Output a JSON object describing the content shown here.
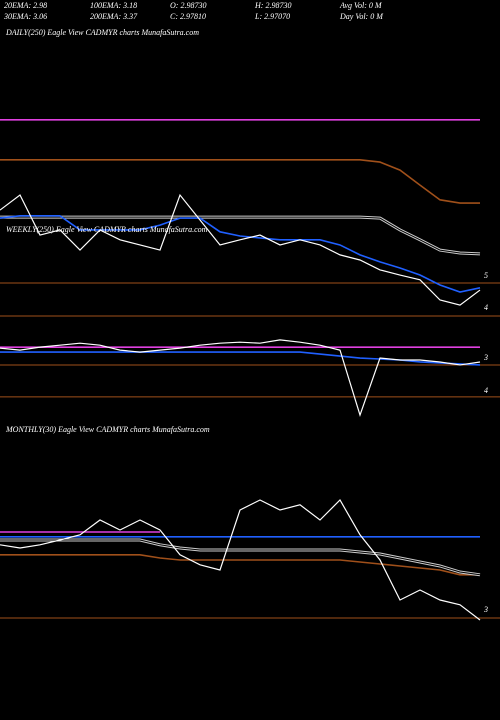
{
  "header": {
    "row1": [
      "20EMA: 2.98",
      "100EMA: 3.18",
      "O: 2.98730",
      "H: 2.98730",
      "Avg Vol: 0  M"
    ],
    "row2": [
      "30EMA: 3.06",
      "200EMA: 3.37",
      "C: 2.97810",
      "L: 2.97070",
      "Day Vol: 0  M"
    ]
  },
  "chart_data": [
    {
      "type": "line",
      "title": "DAILY(250) Eagle  View  CADMYR charts MunafaSutra.com",
      "ylim": [
        3.625,
        12.6875
      ],
      "yticks": [
        5,
        4
      ],
      "level_color": "#a0501a",
      "levels": [
        4.78,
        3.75
      ],
      "series": [
        {
          "color": "#e040e0",
          "style": "solid",
          "values": [
            9.88,
            9.88,
            9.88,
            9.88,
            9.88,
            9.88,
            9.88,
            9.88,
            9.88,
            9.88,
            9.88,
            9.88,
            9.88,
            9.88,
            9.88,
            9.88,
            9.88,
            9.88,
            9.88,
            9.88,
            9.88,
            9.88,
            9.88,
            9.88,
            9.88
          ]
        },
        {
          "color": "#a0501a",
          "style": "solid",
          "values": [
            8.63,
            8.63,
            8.63,
            8.63,
            8.63,
            8.63,
            8.63,
            8.63,
            8.63,
            8.63,
            8.63,
            8.63,
            8.63,
            8.63,
            8.63,
            8.63,
            8.63,
            8.63,
            8.63,
            8.56,
            8.31,
            7.84,
            7.38,
            7.28,
            7.28
          ]
        },
        {
          "color": "#cccccc",
          "style": "double",
          "values": [
            6.84,
            6.84,
            6.84,
            6.84,
            6.84,
            6.84,
            6.84,
            6.84,
            6.84,
            6.84,
            6.84,
            6.84,
            6.84,
            6.84,
            6.84,
            6.84,
            6.84,
            6.84,
            6.84,
            6.81,
            6.44,
            6.13,
            5.81,
            5.72,
            5.69
          ]
        },
        {
          "color": "#2060ff",
          "style": "solid",
          "values": [
            6.81,
            6.88,
            6.88,
            6.88,
            6.44,
            6.44,
            6.44,
            6.44,
            6.59,
            6.81,
            6.81,
            6.38,
            6.25,
            6.19,
            6.13,
            6.13,
            6.13,
            5.97,
            5.66,
            5.44,
            5.25,
            5.03,
            4.72,
            4.5,
            4.63
          ]
        },
        {
          "color": "#ffffff",
          "style": "solid",
          "values": [
            7.06,
            7.53,
            6.28,
            6.44,
            5.81,
            6.44,
            6.13,
            5.97,
            5.81,
            7.53,
            6.75,
            5.97,
            6.13,
            6.28,
            5.97,
            6.13,
            5.97,
            5.66,
            5.5,
            5.19,
            5.03,
            4.88,
            4.25,
            4.09,
            4.56
          ]
        }
      ]
    },
    {
      "type": "line",
      "title": "WEEKLY(250) Eagle  View  CADMYR charts MunafaSutra.com",
      "ylim": [
        2.15,
        4.88
      ],
      "invert": true,
      "yticks": [
        3,
        4
      ],
      "level_color": "#a0501a",
      "levels": [
        3.21,
        4.18
      ],
      "series": [
        {
          "color": "#e040e0",
          "style": "solid",
          "values": [
            2.67,
            2.67,
            2.67,
            2.67,
            2.67,
            2.67,
            2.67,
            2.67,
            2.67,
            2.67,
            2.67,
            2.67,
            2.67,
            2.67,
            2.67,
            2.67,
            2.67,
            2.67,
            2.67,
            2.67,
            2.67,
            2.67,
            2.67,
            2.67,
            2.67
          ]
        },
        {
          "color": "#2060ff",
          "style": "solid",
          "values": [
            2.82,
            2.82,
            2.82,
            2.82,
            2.82,
            2.82,
            2.82,
            2.82,
            2.82,
            2.82,
            2.82,
            2.82,
            2.82,
            2.82,
            2.82,
            2.82,
            2.88,
            2.94,
            3,
            3.03,
            3.06,
            3.12,
            3.15,
            3.18,
            3.21
          ]
        },
        {
          "color": "#ffffff",
          "style": "solid",
          "values": [
            2.7,
            2.76,
            2.67,
            2.61,
            2.55,
            2.61,
            2.76,
            2.82,
            2.76,
            2.7,
            2.61,
            2.55,
            2.52,
            2.55,
            2.45,
            2.52,
            2.61,
            2.76,
            4.73,
            3,
            3.06,
            3.06,
            3.12,
            3.21,
            3.12
          ]
        }
      ]
    },
    {
      "type": "line",
      "title": "MONTHLY(30) Eagle  View  CADMYR charts MunafaSutra.com",
      "ylim": [
        0.5,
        7.5
      ],
      "yticks": [
        3
      ],
      "level_color": "#a0501a",
      "levels": [
        2.8
      ],
      "series": [
        {
          "color": "#a0501a",
          "style": "solid",
          "values": [
            4.38,
            4.38,
            4.38,
            4.38,
            4.38,
            4.38,
            4.38,
            4.38,
            4.3,
            4.25,
            4.25,
            4.25,
            4.25,
            4.25,
            4.25,
            4.25,
            4.25,
            4.25,
            4.2,
            4.15,
            4.1,
            4.05,
            4,
            3.88,
            3.88
          ]
        },
        {
          "color": "#cccccc",
          "style": "double",
          "values": [
            4.75,
            4.75,
            4.75,
            4.75,
            4.75,
            4.75,
            4.75,
            4.75,
            4.63,
            4.55,
            4.5,
            4.5,
            4.5,
            4.5,
            4.5,
            4.5,
            4.5,
            4.5,
            4.45,
            4.4,
            4.3,
            4.2,
            4.1,
            3.95,
            3.88
          ]
        },
        {
          "color": "#e040e0",
          "style": "solid",
          "values": [
            4.95,
            4.95,
            4.95,
            4.95,
            4.95,
            4.95,
            4.95,
            4.95,
            4.95,
            null,
            null,
            null,
            null,
            null,
            null,
            null,
            null,
            null,
            null,
            null,
            null,
            null,
            null,
            null,
            null
          ]
        },
        {
          "color": "#2060ff",
          "style": "solid",
          "values": [
            4.83,
            4.83,
            4.83,
            4.83,
            4.83,
            4.83,
            4.83,
            4.83,
            4.83,
            4.83,
            4.83,
            4.83,
            4.83,
            4.83,
            4.83,
            4.83,
            4.83,
            4.83,
            4.83,
            4.83,
            4.83,
            4.83,
            4.83,
            4.83,
            4.83
          ]
        },
        {
          "color": "#ffffff",
          "style": "solid",
          "values": [
            4.63,
            4.55,
            4.63,
            4.75,
            4.88,
            5.25,
            5,
            5.25,
            5,
            4.38,
            4.13,
            4,
            5.5,
            5.75,
            5.5,
            5.63,
            5.25,
            5.75,
            4.88,
            4.25,
            3.25,
            3.5,
            3.25,
            3.13,
            2.75
          ]
        }
      ]
    }
  ]
}
